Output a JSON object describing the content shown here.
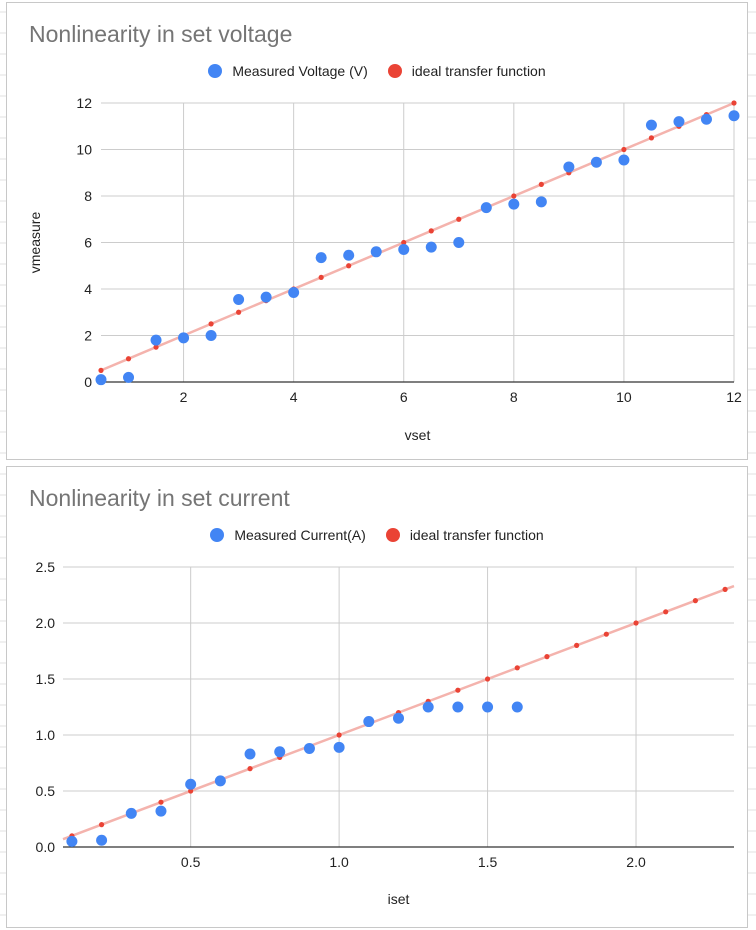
{
  "colors": {
    "measured": "#4285f4",
    "ideal_points": "#ea4335",
    "ideal_line": "#f4b3ad",
    "grid": "#cccccc",
    "axis": "#333333",
    "text": "#222222",
    "title": "#757575"
  },
  "icons": {
    "legend_marker": "filled-circle-icon"
  },
  "chart_data": [
    {
      "type": "scatter",
      "title": "Nonlinearity in set voltage",
      "xlabel": "vset",
      "ylabel": "vmeasure",
      "xlim": [
        0.5,
        12
      ],
      "ylim": [
        0,
        12
      ],
      "xticks": [
        2,
        4,
        6,
        8,
        10,
        12
      ],
      "yticks": [
        0,
        2,
        4,
        6,
        8,
        10,
        12
      ],
      "tick_labels_x": [
        "2",
        "4",
        "6",
        "8",
        "10",
        "12"
      ],
      "tick_labels_y": [
        "0",
        "2",
        "4",
        "6",
        "8",
        "10",
        "12"
      ],
      "grid": true,
      "legend": "top",
      "series": [
        {
          "name": "Measured Voltage (V)",
          "x": [
            0.5,
            1,
            1.5,
            2,
            2.5,
            3,
            3.5,
            4,
            4.5,
            5,
            5.5,
            6,
            6.5,
            7,
            7.5,
            8,
            8.5,
            9,
            9.5,
            10,
            10.5,
            11,
            11.5,
            12
          ],
          "y": [
            0.1,
            0.2,
            1.8,
            1.9,
            2.0,
            3.55,
            3.65,
            3.85,
            5.35,
            5.45,
            5.6,
            5.7,
            5.8,
            6.0,
            7.5,
            7.65,
            7.75,
            9.25,
            9.45,
            9.55,
            11.05,
            11.2,
            11.3,
            11.45
          ]
        },
        {
          "name": "ideal transfer function",
          "x": [
            0.5,
            1,
            1.5,
            2,
            2.5,
            3,
            3.5,
            4,
            4.5,
            5,
            5.5,
            6,
            6.5,
            7,
            7.5,
            8,
            8.5,
            9,
            9.5,
            10,
            10.5,
            11,
            11.5,
            12
          ],
          "y": [
            0.5,
            1,
            1.5,
            2,
            2.5,
            3,
            3.5,
            4,
            4.5,
            5,
            5.5,
            6,
            6.5,
            7,
            7.5,
            8,
            8.5,
            9,
            9.5,
            10,
            10.5,
            11,
            11.5,
            12
          ]
        }
      ]
    },
    {
      "type": "scatter",
      "title": "Nonlinearity in set current",
      "xlabel": "iset",
      "ylabel": "",
      "xlim": [
        0.07,
        2.33
      ],
      "ylim": [
        0,
        2.5
      ],
      "xticks": [
        0.5,
        1.0,
        1.5,
        2.0
      ],
      "yticks": [
        0,
        0.5,
        1.0,
        1.5,
        2.0,
        2.5
      ],
      "tick_labels_x": [
        "0.5",
        "1.0",
        "1.5",
        "2.0"
      ],
      "tick_labels_y": [
        "0.0",
        "0.5",
        "1.0",
        "1.5",
        "2.0",
        "2.5"
      ],
      "grid": true,
      "legend": "top",
      "series": [
        {
          "name": "Measured Current(A)",
          "x": [
            0.1,
            0.2,
            0.3,
            0.4,
            0.5,
            0.6,
            0.7,
            0.8,
            0.9,
            1.0,
            1.1,
            1.2,
            1.3,
            1.4,
            1.5,
            1.6
          ],
          "y": [
            0.05,
            0.06,
            0.3,
            0.32,
            0.56,
            0.59,
            0.83,
            0.85,
            0.88,
            0.89,
            1.12,
            1.15,
            1.25,
            1.25,
            1.25,
            1.25
          ]
        },
        {
          "name": "ideal transfer function",
          "x": [
            0.1,
            0.2,
            0.3,
            0.4,
            0.5,
            0.6,
            0.7,
            0.8,
            0.9,
            1.0,
            1.1,
            1.2,
            1.3,
            1.4,
            1.5,
            1.6,
            1.7,
            1.8,
            1.9,
            2.0,
            2.1,
            2.2,
            2.3
          ],
          "y": [
            0.1,
            0.2,
            0.3,
            0.4,
            0.5,
            0.6,
            0.7,
            0.8,
            0.9,
            1.0,
            1.1,
            1.2,
            1.3,
            1.4,
            1.5,
            1.6,
            1.7,
            1.8,
            1.9,
            2.0,
            2.1,
            2.2,
            2.3
          ]
        }
      ]
    }
  ]
}
